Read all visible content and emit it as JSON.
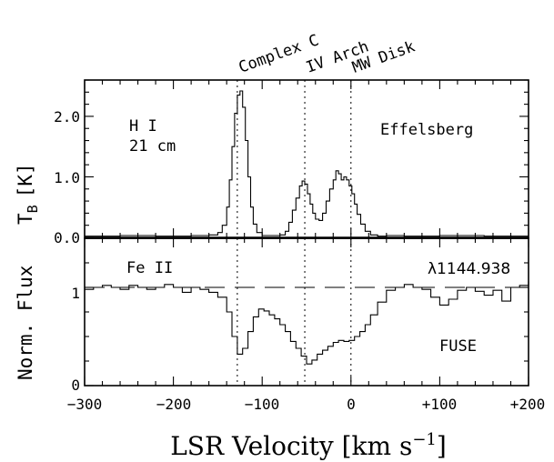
{
  "chart_data": [
    {
      "panel": "top",
      "type": "line",
      "style": "histogram-step",
      "instrument_label": "Effelsberg",
      "line_label_1": "H I",
      "line_label_2": "21 cm",
      "ylabel_main": "T",
      "ylabel_sub": "B",
      "ylabel_unit": "[K]",
      "ylim": [
        0,
        2.6
      ],
      "yticks": [
        "0.0",
        "1.0",
        "2.0"
      ],
      "xlim": [
        -300,
        200
      ],
      "series": [
        {
          "x": [
            -300,
            -260,
            -220,
            -180,
            -160,
            -150,
            -145,
            -140,
            -137,
            -134,
            -131,
            -128,
            -125,
            -122,
            -119,
            -116,
            -113,
            -110,
            -106,
            -100,
            -90,
            -80,
            -74,
            -70,
            -66,
            -62,
            -58,
            -55,
            -52,
            -49,
            -46,
            -43,
            -40,
            -36,
            -32,
            -28,
            -24,
            -20,
            -17,
            -14,
            -11,
            -8,
            -5,
            -2,
            1,
            4,
            7,
            11,
            16,
            22,
            30,
            40,
            60,
            100,
            150,
            200
          ],
          "values": [
            0.02,
            0.03,
            0.02,
            0.03,
            0.04,
            0.08,
            0.2,
            0.5,
            0.95,
            1.5,
            2.05,
            2.35,
            2.42,
            2.15,
            1.6,
            1.0,
            0.5,
            0.22,
            0.08,
            0.03,
            0.03,
            0.04,
            0.1,
            0.25,
            0.45,
            0.65,
            0.85,
            0.93,
            0.88,
            0.72,
            0.55,
            0.4,
            0.3,
            0.28,
            0.4,
            0.6,
            0.8,
            0.95,
            1.1,
            1.05,
            0.95,
            1.0,
            0.95,
            0.85,
            0.72,
            0.55,
            0.38,
            0.22,
            0.1,
            0.04,
            0.02,
            0.03,
            0.02,
            0.03,
            0.02,
            0.03
          ]
        }
      ]
    },
    {
      "panel": "bottom",
      "type": "line",
      "style": "histogram-step",
      "instrument_label": "FUSE",
      "line_label": "Fe II",
      "wavelength_label": "λ1144.938",
      "ylabel": "Norm. Flux",
      "ylim": [
        0,
        1.5
      ],
      "yticks": [
        "0",
        "1"
      ],
      "continuum": 1,
      "xlim": [
        -300,
        200
      ],
      "xlabel": "LSR Velocity [km s",
      "xlabel_exp": "−1",
      "xlabel_end": "]",
      "xticks": [
        "−300",
        "−200",
        "−100",
        "0",
        "+100",
        "+200"
      ],
      "series": [
        {
          "x": [
            -300,
            -290,
            -280,
            -270,
            -260,
            -250,
            -240,
            -230,
            -220,
            -210,
            -200,
            -190,
            -180,
            -170,
            -160,
            -150,
            -140,
            -134,
            -128,
            -122,
            -116,
            -110,
            -104,
            -98,
            -92,
            -86,
            -80,
            -74,
            -68,
            -62,
            -56,
            -50,
            -44,
            -38,
            -32,
            -26,
            -20,
            -14,
            -8,
            -2,
            4,
            10,
            16,
            22,
            30,
            40,
            50,
            60,
            70,
            80,
            90,
            100,
            110,
            120,
            130,
            140,
            150,
            160,
            170,
            180,
            190,
            200
          ],
          "values": [
            0.98,
            1.0,
            1.02,
            1.0,
            0.98,
            1.02,
            1.0,
            0.98,
            1.0,
            1.03,
            1.0,
            0.95,
            1.0,
            0.98,
            0.95,
            0.9,
            0.75,
            0.5,
            0.32,
            0.38,
            0.55,
            0.7,
            0.78,
            0.76,
            0.72,
            0.68,
            0.62,
            0.55,
            0.45,
            0.38,
            0.3,
            0.22,
            0.26,
            0.32,
            0.36,
            0.4,
            0.44,
            0.46,
            0.45,
            0.46,
            0.5,
            0.55,
            0.62,
            0.72,
            0.85,
            0.97,
            1.0,
            1.03,
            1.0,
            0.98,
            0.9,
            0.82,
            0.88,
            0.97,
            1.0,
            0.96,
            0.92,
            0.97,
            0.86,
            1.0,
            1.02,
            1.06
          ]
        }
      ]
    }
  ],
  "components": [
    {
      "label": "Complex C",
      "velocity": -128
    },
    {
      "label": "IV Arch",
      "velocity": -52
    },
    {
      "label": "MW Disk",
      "velocity": 0
    }
  ]
}
